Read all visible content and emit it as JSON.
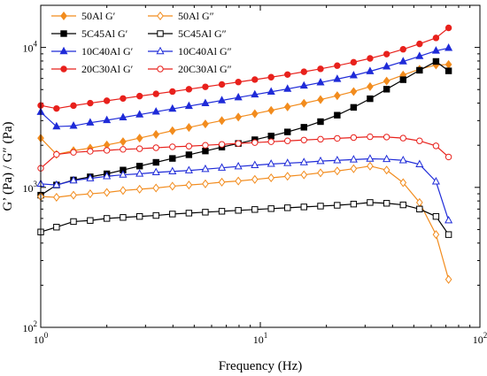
{
  "chart_data": {
    "type": "line",
    "xlabel": "Frequency (Hz)",
    "ylabel": "G’ (Pa) / G″ (Pa)",
    "x_scale": "log",
    "y_scale": "log",
    "xlim": [
      1,
      100
    ],
    "ylim": [
      100,
      20000
    ],
    "x_ticks": [
      {
        "value": 1,
        "base": "10",
        "exp": "0"
      },
      {
        "value": 10,
        "base": "10",
        "exp": "1"
      },
      {
        "value": 100,
        "base": "10",
        "exp": "2"
      }
    ],
    "y_ticks": [
      {
        "value": 100,
        "base": "10",
        "exp": "2"
      },
      {
        "value": 1000,
        "base": "10",
        "exp": "3"
      },
      {
        "value": 10000,
        "base": "10",
        "exp": "4"
      }
    ],
    "legend_position": "top-left",
    "x": [
      1.0,
      1.18,
      1.41,
      1.68,
      2.0,
      2.37,
      2.82,
      3.35,
      3.98,
      4.73,
      5.62,
      6.68,
      7.94,
      9.44,
      11.2,
      13.3,
      15.8,
      18.8,
      22.4,
      26.6,
      31.6,
      37.6,
      44.7,
      53.1,
      63.1,
      72.0
    ],
    "series": [
      {
        "name": "50Al G′",
        "color": "#f28c1e",
        "marker": "diamond",
        "filled": true,
        "values": [
          2250,
          1720,
          1830,
          1910,
          2010,
          2120,
          2250,
          2390,
          2540,
          2680,
          2840,
          3000,
          3180,
          3360,
          3550,
          3760,
          3990,
          4240,
          4520,
          4840,
          5250,
          5750,
          6350,
          6990,
          7490,
          7550
        ]
      },
      {
        "name": "5C45Al G′",
        "color": "#000000",
        "marker": "square",
        "filled": true,
        "values": [
          880,
          1040,
          1130,
          1190,
          1250,
          1330,
          1420,
          1510,
          1610,
          1710,
          1820,
          1940,
          2060,
          2190,
          2330,
          2490,
          2690,
          2950,
          3280,
          3730,
          4300,
          5030,
          5880,
          6870,
          7940,
          6800
        ]
      },
      {
        "name": "10C40Al G′",
        "color": "#1f2bd8",
        "marker": "triangle",
        "filled": true,
        "values": [
          3450,
          2720,
          2750,
          2900,
          3020,
          3160,
          3310,
          3470,
          3640,
          3810,
          3990,
          4180,
          4390,
          4600,
          4820,
          5050,
          5320,
          5610,
          5940,
          6300,
          6750,
          7300,
          7930,
          8650,
          9460,
          9900
        ]
      },
      {
        "name": "20C30Al G′",
        "color": "#e8211c",
        "marker": "circle",
        "filled": true,
        "values": [
          3850,
          3660,
          3840,
          4000,
          4160,
          4320,
          4490,
          4660,
          4840,
          5030,
          5230,
          5440,
          5660,
          5890,
          6130,
          6400,
          6700,
          7030,
          7410,
          7840,
          8350,
          8960,
          9700,
          10600,
          11700,
          13800
        ]
      },
      {
        "name": "50Al G″",
        "color": "#f28c1e",
        "marker": "diamond",
        "filled": false,
        "values": [
          860,
          850,
          880,
          900,
          920,
          950,
          970,
          990,
          1020,
          1040,
          1060,
          1090,
          1110,
          1140,
          1170,
          1200,
          1230,
          1270,
          1310,
          1360,
          1420,
          1330,
          1080,
          780,
          460,
          220
        ]
      },
      {
        "name": "5C45Al G″",
        "color": "#000000",
        "marker": "square",
        "filled": false,
        "values": [
          480,
          520,
          570,
          580,
          600,
          610,
          620,
          630,
          645,
          655,
          665,
          675,
          685,
          695,
          705,
          715,
          725,
          735,
          745,
          760,
          780,
          770,
          750,
          700,
          620,
          460
        ]
      },
      {
        "name": "10C40Al G″",
        "color": "#1f2bd8",
        "marker": "triangle",
        "filled": false,
        "values": [
          1060,
          1040,
          1120,
          1160,
          1200,
          1230,
          1250,
          1280,
          1300,
          1320,
          1350,
          1380,
          1410,
          1440,
          1470,
          1490,
          1510,
          1540,
          1560,
          1580,
          1600,
          1590,
          1560,
          1460,
          1100,
          580
        ]
      },
      {
        "name": "20C30Al G″",
        "color": "#e8211c",
        "marker": "circle",
        "filled": false,
        "values": [
          1370,
          1720,
          1780,
          1810,
          1840,
          1870,
          1890,
          1920,
          1950,
          1970,
          2000,
          2030,
          2060,
          2090,
          2120,
          2150,
          2180,
          2210,
          2240,
          2270,
          2300,
          2290,
          2250,
          2150,
          1980,
          1650
        ]
      }
    ]
  }
}
